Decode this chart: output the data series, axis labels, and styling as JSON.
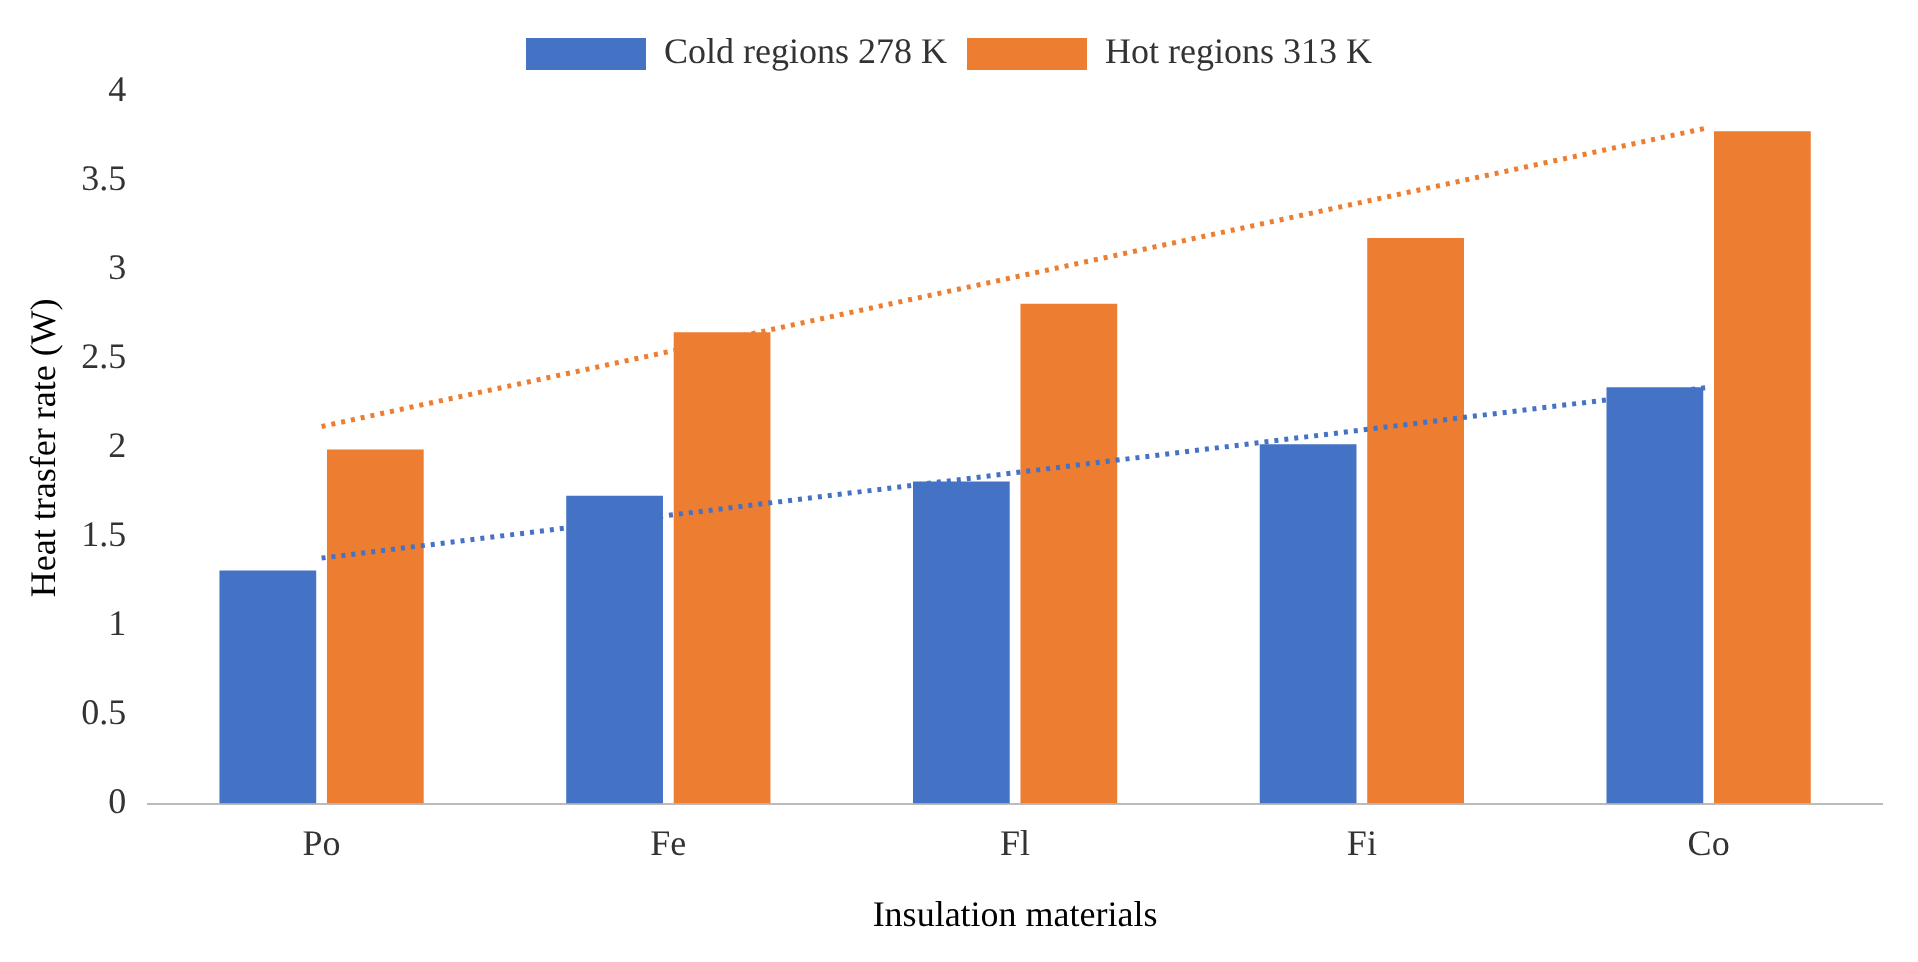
{
  "chart_data": {
    "type": "bar",
    "xlabel": "Insulation materials",
    "ylabel": "Heat trasfer rate (W)",
    "categories": [
      "Po",
      "Fe",
      "Fl",
      "Fi",
      "Co"
    ],
    "series": [
      {
        "name": "Cold regions 278 K",
        "color": "#4472c4",
        "values": [
          1.31,
          1.73,
          1.81,
          2.02,
          2.34
        ]
      },
      {
        "name": "Hot regions 313 K",
        "color": "#ed7d31",
        "values": [
          1.99,
          2.65,
          2.81,
          3.18,
          3.78
        ]
      },
      {
        "type": "line",
        "color": "#4472c4",
        "line_style": "dotted",
        "marker": "none",
        "values": [
          1.38,
          1.62,
          1.86,
          2.1,
          2.34
        ]
      },
      {
        "type": "line",
        "color": "#ed7d31",
        "line_style": "dotted",
        "marker": "none",
        "values": [
          2.12,
          2.54,
          2.96,
          3.38,
          3.8
        ]
      }
    ],
    "ylim": [
      0,
      4
    ],
    "yticks": [
      0,
      0.5,
      1,
      1.5,
      2,
      2.5,
      3,
      3.5,
      4
    ],
    "grid": false,
    "legend": "top"
  }
}
